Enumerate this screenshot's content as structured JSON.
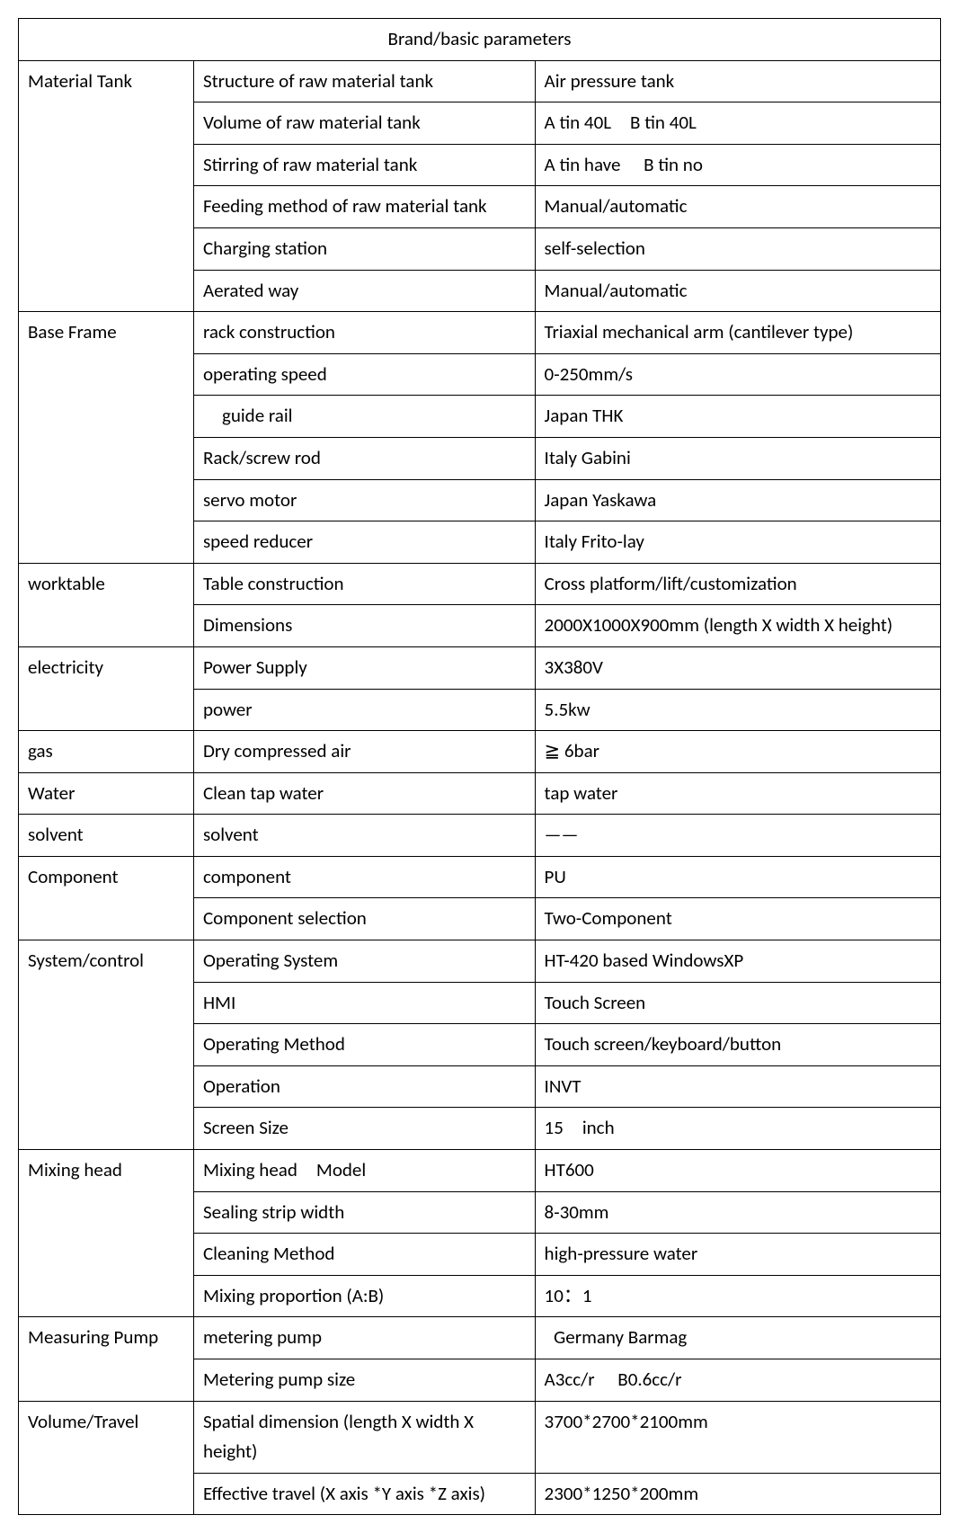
{
  "table": {
    "title": "Brand/basic parameters",
    "border_color": "#000000",
    "background_color": "#ffffff",
    "text_color": "#000000",
    "font_size_pt": 16,
    "col_widths_pct": [
      19,
      37,
      44
    ],
    "groups": [
      {
        "label": "Material Tank",
        "rows": [
          {
            "param": "Structure of raw material tank",
            "value": "Air pressure tank"
          },
          {
            "param": "Volume of raw material tank",
            "value": "A tin 40L B tin 40L"
          },
          {
            "param": "Stirring of raw material tank",
            "value": "A tin have  B tin no"
          },
          {
            "param": "Feeding method of raw material tank",
            "value": "Manual/automatic",
            "param_justify": true
          },
          {
            "param": "Charging station",
            "value": "self-selection"
          },
          {
            "param": "Aerated way",
            "value": "Manual/automatic"
          }
        ]
      },
      {
        "label": "Base Frame",
        "rows": [
          {
            "param": "rack construction",
            "value": "Triaxial mechanical arm (cantilever type)",
            "value_justify": true
          },
          {
            "param": "operating speed",
            "value": "0-250mm/s"
          },
          {
            "param": " guide rail",
            "value": "Japan THK"
          },
          {
            "param": "Rack/screw rod",
            "value": "Italy Gabini"
          },
          {
            "param": "servo motor",
            "value": "Japan Yaskawa"
          },
          {
            "param": "speed reducer",
            "value": "Italy Frito-lay"
          }
        ]
      },
      {
        "label": "worktable",
        "rows": [
          {
            "param": "Table construction",
            "value": "Cross platform/lift/customization"
          },
          {
            "param": "Dimensions",
            "value": "2000X1000X900mm (length X width X height)"
          }
        ]
      },
      {
        "label": "electricity",
        "rows": [
          {
            "param": "Power Supply",
            "value": "3X380V"
          },
          {
            "param": "power",
            "value": "5.5kw"
          }
        ]
      },
      {
        "label": "gas",
        "rows": [
          {
            "param": "Dry compressed air",
            "value": "≧ 6bar"
          }
        ]
      },
      {
        "label": "Water",
        "rows": [
          {
            "param": "Clean tap water",
            "value": "tap water"
          }
        ]
      },
      {
        "label": "solvent",
        "rows": [
          {
            "param": "solvent",
            "value": "——"
          }
        ]
      },
      {
        "label": "Component",
        "rows": [
          {
            "param": "component",
            "value": "PU"
          },
          {
            "param": "Component selection",
            "value": "Two-Component"
          }
        ]
      },
      {
        "label": "System/control",
        "rows": [
          {
            "param": "Operating System",
            "value": "HT-420 based WindowsXP"
          },
          {
            "param": "HMI",
            "value": "Touch Screen"
          },
          {
            "param": "Operating Method",
            "value": "Touch screen/keyboard/button"
          },
          {
            "param": "Operation",
            "value": "INVT"
          },
          {
            "param": "Screen Size",
            "value": "15 inch"
          }
        ]
      },
      {
        "label": "Mixing head",
        "rows": [
          {
            "param": "Mixing head Model",
            "value": "HT600"
          },
          {
            "param": "Sealing strip width",
            "value": "8-30mm"
          },
          {
            "param": "Cleaning Method",
            "value": "high-pressure water"
          },
          {
            "param": "Mixing proportion (A:B)",
            "value": "10：1"
          }
        ]
      },
      {
        "label": "Measuring Pump",
        "rows": [
          {
            "param": "metering pump",
            "value": " Germany Barmag"
          },
          {
            "param": "Metering pump size",
            "value": "A3cc/r  B0.6cc/r"
          }
        ]
      },
      {
        "label": "Volume/Travel",
        "rows": [
          {
            "param": "Spatial dimension (length X width X height)",
            "value": "3700*2700*2100mm"
          },
          {
            "param": "Effective travel (X axis *Y axis *Z axis)",
            "value": "2300*1250*200mm",
            "param_justify": true
          }
        ]
      }
    ]
  }
}
